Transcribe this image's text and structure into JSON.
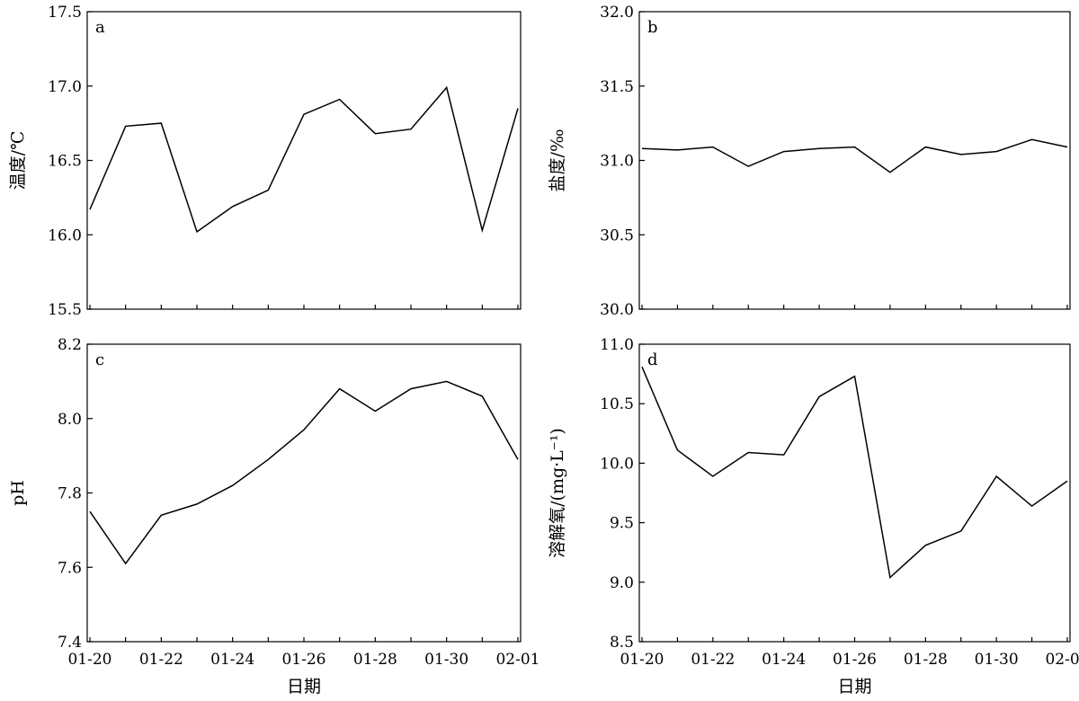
{
  "chart_data": [
    {
      "panel": "a",
      "type": "line",
      "ylabel": "温度/℃",
      "xlabel": "",
      "ylim": [
        15.5,
        17.5
      ],
      "yticks": [
        "15.5",
        "16.0",
        "16.5",
        "17.0",
        "17.5"
      ],
      "x": [
        "01-20",
        "01-21",
        "01-22",
        "01-23",
        "01-24",
        "01-25",
        "01-26",
        "01-27",
        "01-28",
        "01-29",
        "01-30",
        "01-31",
        "02-01"
      ],
      "values": [
        16.17,
        16.73,
        16.75,
        16.02,
        16.19,
        16.3,
        16.81,
        16.91,
        16.68,
        16.71,
        16.99,
        16.03,
        16.85
      ]
    },
    {
      "panel": "b",
      "type": "line",
      "ylabel": "盐度/‰",
      "xlabel": "",
      "ylim": [
        30.0,
        32.0
      ],
      "yticks": [
        "30.0",
        "30.5",
        "31.0",
        "31.5",
        "32.0"
      ],
      "x": [
        "01-20",
        "01-21",
        "01-22",
        "01-23",
        "01-24",
        "01-25",
        "01-26",
        "01-27",
        "01-28",
        "01-29",
        "01-30",
        "01-31",
        "02-01"
      ],
      "values": [
        31.08,
        31.07,
        31.09,
        30.96,
        31.06,
        31.08,
        31.09,
        30.92,
        31.09,
        31.04,
        31.06,
        31.14,
        31.09
      ]
    },
    {
      "panel": "c",
      "type": "line",
      "ylabel": "pH",
      "xlabel": "日期",
      "ylim": [
        7.4,
        8.2
      ],
      "yticks": [
        "7.4",
        "7.6",
        "7.8",
        "8.0",
        "8.2"
      ],
      "xticks": [
        "01-20",
        "01-22",
        "01-24",
        "01-26",
        "01-28",
        "01-30",
        "02-01"
      ],
      "x": [
        "01-20",
        "01-21",
        "01-22",
        "01-23",
        "01-24",
        "01-25",
        "01-26",
        "01-27",
        "01-28",
        "01-29",
        "01-30",
        "01-31",
        "02-01"
      ],
      "values": [
        7.75,
        7.61,
        7.74,
        7.77,
        7.82,
        7.89,
        7.97,
        8.08,
        8.02,
        8.08,
        8.1,
        8.06,
        7.89
      ]
    },
    {
      "panel": "d",
      "type": "line",
      "ylabel": "溶解氧/(mg·L⁻¹)",
      "xlabel": "日期",
      "ylim": [
        8.5,
        11.0
      ],
      "yticks": [
        "8.5",
        "9.0",
        "9.5",
        "10.0",
        "10.5",
        "11.0"
      ],
      "xticks": [
        "01-20",
        "01-22",
        "01-24",
        "01-26",
        "01-28",
        "01-30",
        "02-01"
      ],
      "x": [
        "01-20",
        "01-21",
        "01-22",
        "01-23",
        "01-24",
        "01-25",
        "01-26",
        "01-27",
        "01-28",
        "01-29",
        "01-30",
        "01-31",
        "02-01"
      ],
      "values": [
        10.81,
        10.11,
        9.89,
        10.09,
        10.07,
        10.56,
        10.73,
        9.04,
        9.31,
        9.43,
        9.89,
        9.64,
        9.85
      ]
    }
  ]
}
